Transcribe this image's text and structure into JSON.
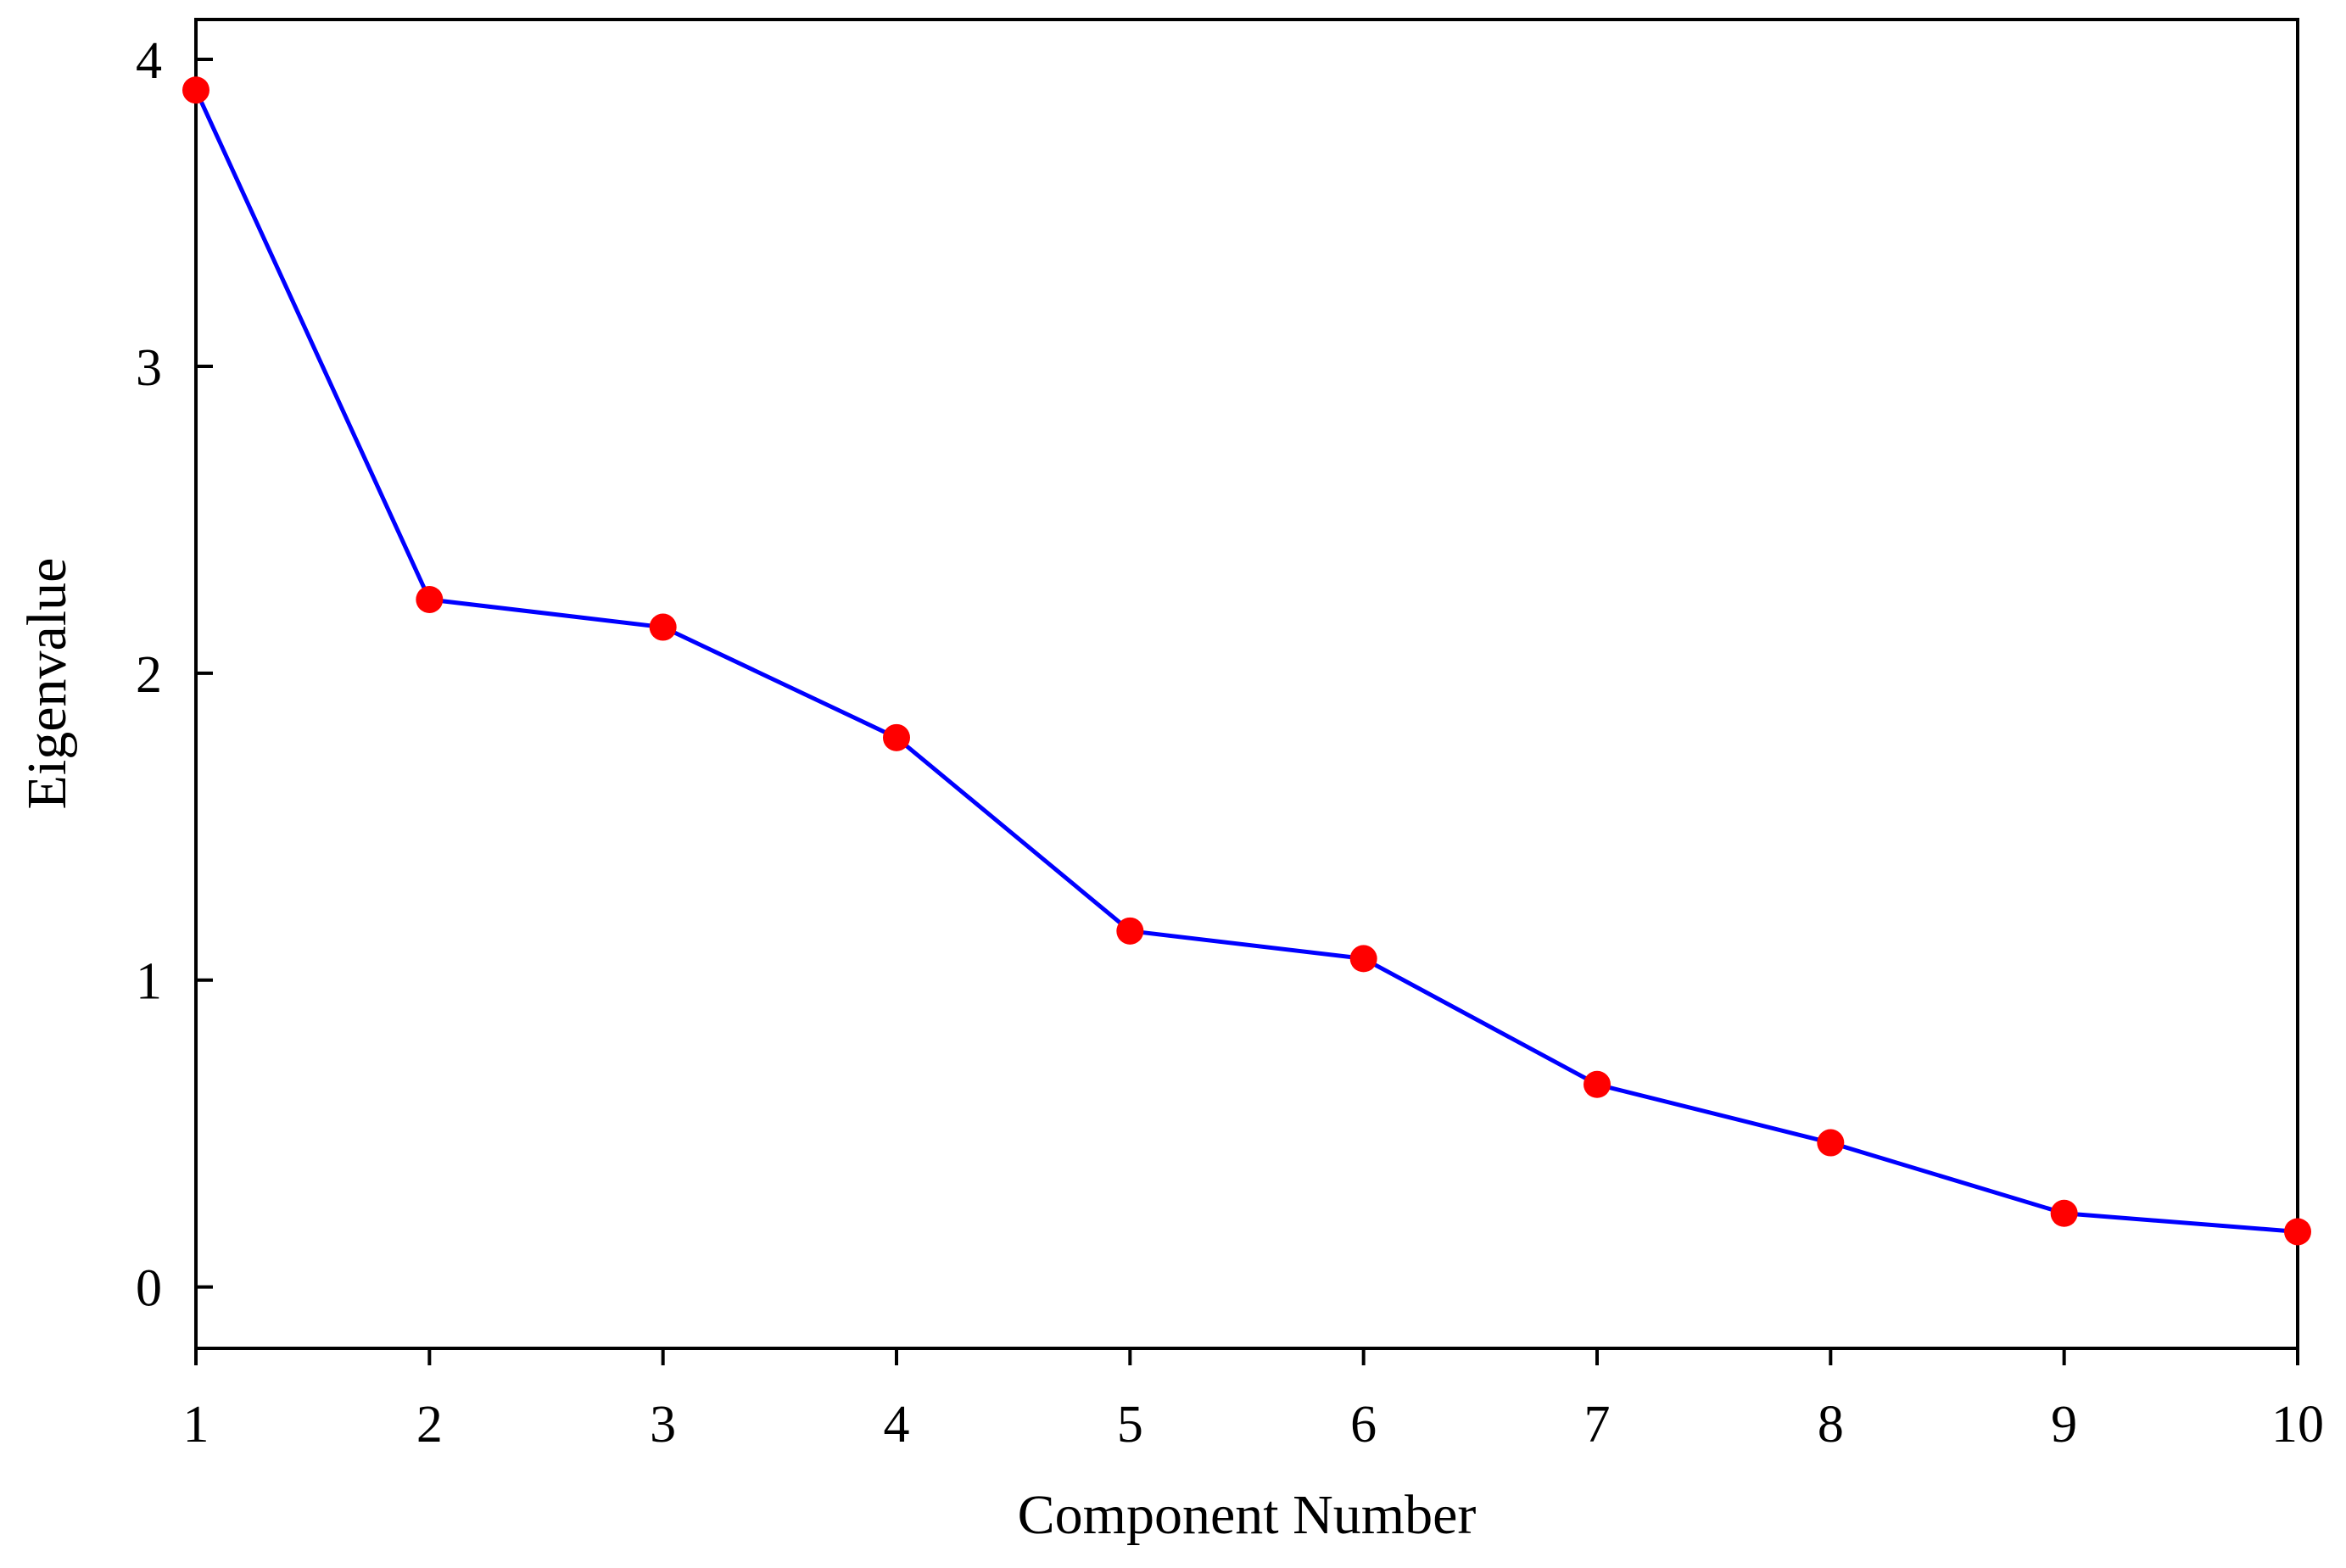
{
  "chart_data": {
    "type": "line",
    "title": "",
    "xlabel": "Component Number",
    "ylabel": "Eigenvalue",
    "x": [
      1,
      2,
      3,
      4,
      5,
      6,
      7,
      8,
      9,
      10
    ],
    "xticks": [
      "1",
      "2",
      "3",
      "4",
      "5",
      "6",
      "7",
      "8",
      "9",
      "10"
    ],
    "yticks": [
      "0",
      "1",
      "2",
      "3",
      "4"
    ],
    "xlim": [
      1,
      10
    ],
    "ylim": [
      -0.2,
      4.13
    ],
    "grid": false,
    "legend": "none",
    "series": [
      {
        "values": [
          3.9,
          2.24,
          2.15,
          1.79,
          1.16,
          1.07,
          0.66,
          0.47,
          0.24,
          0.18
        ],
        "line_color": "#0000ff",
        "marker_color": "#ff0000"
      }
    ]
  }
}
